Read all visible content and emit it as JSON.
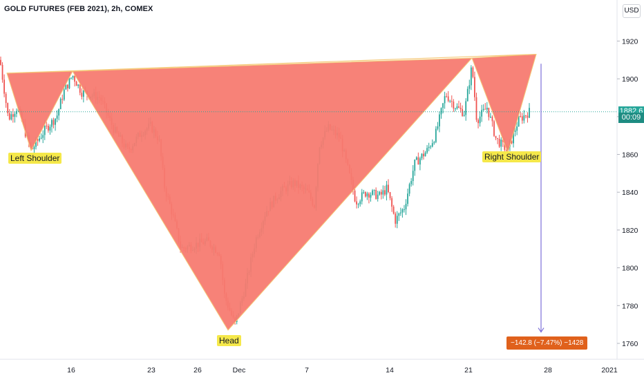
{
  "header": {
    "title": "GOLD FUTURES (FEB 2021), 2h, COMEX",
    "currency": "USD"
  },
  "annotations": {
    "left_shoulder": "Left Shoulder",
    "head": "Head",
    "right_shoulder": "Right Shoulder",
    "measure": "−142.8 (−7.47%) −1428"
  },
  "price_scale": {
    "last_price": "1882.6",
    "countdown": "00:09"
  },
  "colors": {
    "up": "#26a69a",
    "down": "#ef5350",
    "pattern_fill": "#f77a70",
    "pattern_stroke": "#f5c97a",
    "arrow": "#7b6fd8",
    "measure_bg": "#e0611c",
    "price_line": "#26a69a",
    "label_bg": "#f5e84a"
  },
  "chart_data": {
    "type": "candlestick",
    "title": "GOLD FUTURES (FEB 2021), 2h, COMEX",
    "ylim": [
      1750,
      1928
    ],
    "y_ticks": [
      1760,
      1780,
      1800,
      1820,
      1840,
      1860,
      1880,
      1900,
      1920
    ],
    "x_ticks": [
      "16",
      "23",
      "26",
      "Dec",
      "7",
      "14",
      "21",
      "28",
      "2021"
    ],
    "last_price": 1882.6,
    "price_path": [
      {
        "x": 0,
        "y": 1910
      },
      {
        "x": 12,
        "y": 1879
      },
      {
        "x": 25,
        "y": 1885
      },
      {
        "x": 45,
        "y": 1862
      },
      {
        "x": 65,
        "y": 1873
      },
      {
        "x": 82,
        "y": 1880
      },
      {
        "x": 92,
        "y": 1893
      },
      {
        "x": 105,
        "y": 1902
      },
      {
        "x": 118,
        "y": 1893
      },
      {
        "x": 145,
        "y": 1890
      },
      {
        "x": 165,
        "y": 1873
      },
      {
        "x": 185,
        "y": 1862
      },
      {
        "x": 205,
        "y": 1872
      },
      {
        "x": 218,
        "y": 1875
      },
      {
        "x": 230,
        "y": 1868
      },
      {
        "x": 238,
        "y": 1843
      },
      {
        "x": 250,
        "y": 1828
      },
      {
        "x": 262,
        "y": 1810
      },
      {
        "x": 280,
        "y": 1812
      },
      {
        "x": 300,
        "y": 1814
      },
      {
        "x": 318,
        "y": 1808
      },
      {
        "x": 325,
        "y": 1785
      },
      {
        "x": 340,
        "y": 1770
      },
      {
        "x": 355,
        "y": 1790
      },
      {
        "x": 370,
        "y": 1815
      },
      {
        "x": 385,
        "y": 1830
      },
      {
        "x": 405,
        "y": 1840
      },
      {
        "x": 425,
        "y": 1845
      },
      {
        "x": 445,
        "y": 1840
      },
      {
        "x": 455,
        "y": 1833
      },
      {
        "x": 462,
        "y": 1865
      },
      {
        "x": 475,
        "y": 1874
      },
      {
        "x": 492,
        "y": 1869
      },
      {
        "x": 505,
        "y": 1850
      },
      {
        "x": 515,
        "y": 1835
      },
      {
        "x": 530,
        "y": 1840
      },
      {
        "x": 550,
        "y": 1838
      },
      {
        "x": 560,
        "y": 1842
      },
      {
        "x": 572,
        "y": 1825
      },
      {
        "x": 585,
        "y": 1832
      },
      {
        "x": 600,
        "y": 1855
      },
      {
        "x": 618,
        "y": 1862
      },
      {
        "x": 630,
        "y": 1870
      },
      {
        "x": 645,
        "y": 1892
      },
      {
        "x": 660,
        "y": 1885
      },
      {
        "x": 672,
        "y": 1882
      },
      {
        "x": 683,
        "y": 1907
      },
      {
        "x": 690,
        "y": 1878
      },
      {
        "x": 705,
        "y": 1885
      },
      {
        "x": 718,
        "y": 1868
      },
      {
        "x": 735,
        "y": 1862
      },
      {
        "x": 750,
        "y": 1878
      },
      {
        "x": 766,
        "y": 1882.6
      }
    ],
    "pattern": {
      "left_shoulder": [
        {
          "x": 10,
          "y": 1903
        },
        {
          "x": 45,
          "y": 1862
        },
        {
          "x": 105,
          "y": 1904
        }
      ],
      "head": [
        {
          "x": 105,
          "y": 1904
        },
        {
          "x": 330,
          "y": 1767
        },
        {
          "x": 683,
          "y": 1911
        }
      ],
      "right_shoulder": [
        {
          "x": 683,
          "y": 1911
        },
        {
          "x": 735,
          "y": 1861
        },
        {
          "x": 776,
          "y": 1913
        }
      ],
      "neckline": [
        {
          "x": 10,
          "y": 1903
        },
        {
          "x": 776,
          "y": 1913
        }
      ]
    },
    "projection": {
      "x": 783,
      "from": 1908,
      "to": 1766,
      "change": -142.8,
      "percent": -7.47
    }
  }
}
